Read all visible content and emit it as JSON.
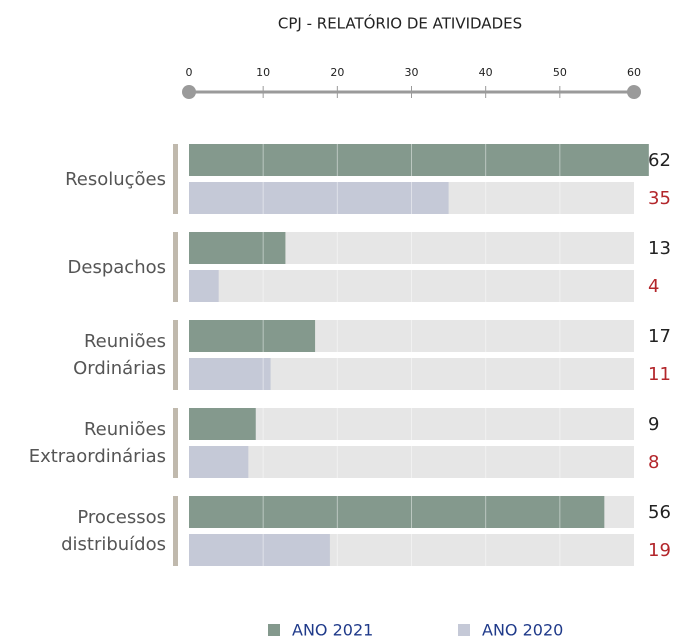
{
  "chart_data": {
    "type": "hbar",
    "title": "CPJ - RELATÓRIO DE ATIVIDADES",
    "categories": [
      "Resoluções",
      "Despachos",
      "Reuniões Ordinárias",
      "Reuniões Extraordinárias",
      "Processos distribuídos"
    ],
    "series": [
      {
        "name": "ANO 2021",
        "color": "#84998d",
        "label_color": "#222222",
        "values": [
          62,
          13,
          17,
          9,
          56
        ]
      },
      {
        "name": "ANO 2020",
        "color": "#c5c9d7",
        "label_color": "#b3262b",
        "values": [
          35,
          4,
          11,
          8,
          19
        ]
      }
    ],
    "xlim": [
      0,
      60
    ],
    "xticks": [
      0,
      10,
      20,
      30,
      40,
      50,
      60
    ],
    "grid": true
  }
}
